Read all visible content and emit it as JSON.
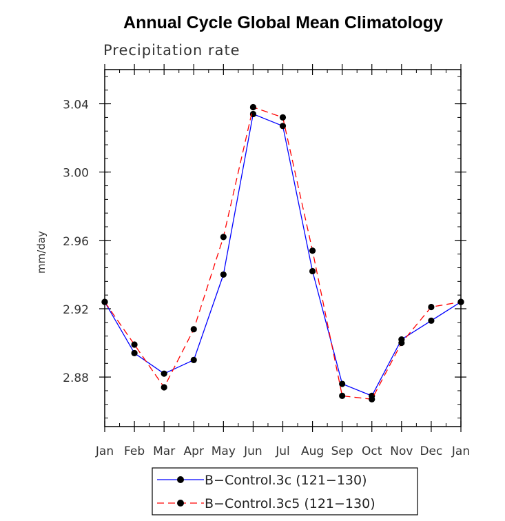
{
  "chart_data": {
    "type": "line",
    "title": "Annual Cycle Global Mean Climatology",
    "subtitle": "Precipitation rate",
    "xlabel": "",
    "ylabel": "mm/day",
    "categories": [
      "Jan",
      "Feb",
      "Mar",
      "Apr",
      "May",
      "Jun",
      "Jul",
      "Aug",
      "Sep",
      "Oct",
      "Nov",
      "Dec",
      "Jan"
    ],
    "ylim": [
      2.851,
      3.06
    ],
    "yticks": [
      2.88,
      2.92,
      2.96,
      3.0,
      3.04
    ],
    "ytick_labels": [
      "2.88",
      "2.92",
      "2.96",
      "3.00",
      "3.04"
    ],
    "yminor_step": 0.008,
    "legend_position": "bottom-center",
    "series": [
      {
        "name": "B−Control.3c (121−130)",
        "color": "#0000ff",
        "dash": "solid",
        "values": [
          2.924,
          2.894,
          2.882,
          2.89,
          2.94,
          3.034,
          3.027,
          2.942,
          2.876,
          2.869,
          2.902,
          2.913,
          2.924
        ]
      },
      {
        "name": "B−Control.3c5 (121−130)",
        "color": "#ff0000",
        "dash": "dashed",
        "values": [
          2.924,
          2.899,
          2.874,
          2.908,
          2.962,
          3.038,
          3.032,
          2.954,
          2.869,
          2.867,
          2.9,
          2.921,
          2.924
        ]
      }
    ]
  }
}
